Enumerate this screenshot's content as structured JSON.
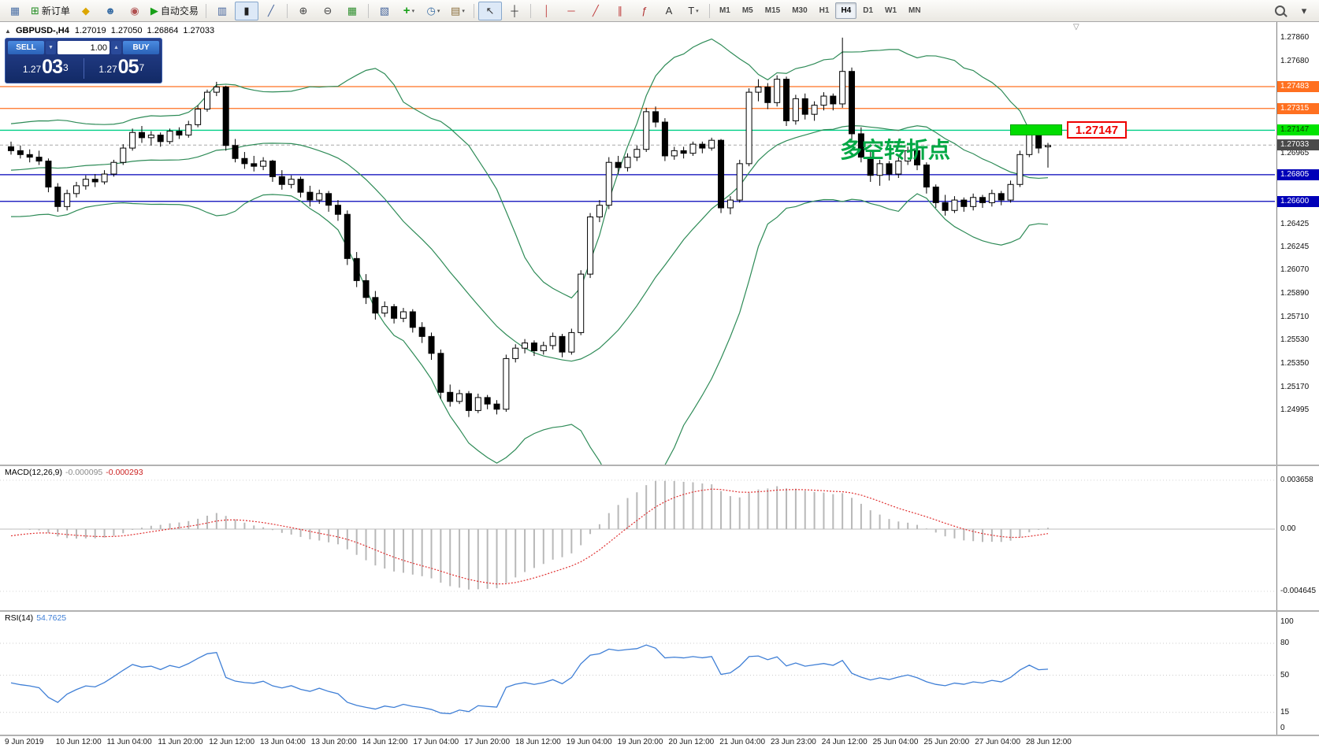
{
  "toolbar": {
    "dd_glyph": "▾",
    "timeframes": [
      "M1",
      "M5",
      "M15",
      "M30",
      "H1",
      "H4",
      "D1",
      "W1",
      "MN"
    ],
    "active_timeframe": "H4",
    "items": [
      {
        "name": "terminal",
        "glyph": "▦",
        "color": "#4a6fa5",
        "interactable": false
      },
      {
        "name": "new-order",
        "glyph": "⊞",
        "color": "#1e8a1e",
        "label": "新订单"
      },
      {
        "name": "metaeditor",
        "glyph": "◆",
        "color": "#dca600"
      },
      {
        "name": "market",
        "glyph": "☻",
        "color": "#3a6ea5"
      },
      {
        "name": "signals",
        "glyph": "◉",
        "color": "#b05050"
      },
      {
        "name": "autotrading",
        "glyph": "▶",
        "color": "#18a018",
        "label": "自动交易"
      },
      {
        "sep": true
      },
      {
        "name": "bar-chart",
        "glyph": "▥",
        "color": "#44639b"
      },
      {
        "name": "candle-chart",
        "glyph": "▮",
        "color": "#222222",
        "active": true
      },
      {
        "name": "line-chart",
        "glyph": "╱",
        "color": "#44639b"
      },
      {
        "sep": true
      },
      {
        "name": "zoom-in",
        "glyph": "⊕",
        "color": "#444444"
      },
      {
        "name": "zoom-out",
        "glyph": "⊖",
        "color": "#444444"
      },
      {
        "name": "tile-windows",
        "glyph": "▦",
        "color": "#2f8f2f"
      },
      {
        "sep": true
      },
      {
        "name": "cascade-windows",
        "glyph": "▧",
        "color": "#44639b"
      },
      {
        "name": "indicators",
        "glyph": "+",
        "color": "#18a018",
        "dd": true
      },
      {
        "name": "periods",
        "glyph": "◷",
        "color": "#3a6ea5",
        "dd": true
      },
      {
        "name": "templates",
        "glyph": "▤",
        "color": "#8a6d3b",
        "dd": true
      },
      {
        "sep": true
      },
      {
        "name": "cursor",
        "glyph": "↖",
        "color": "#333333",
        "active": true
      },
      {
        "name": "crosshair",
        "glyph": "┼",
        "color": "#333333"
      },
      {
        "sep": true
      },
      {
        "name": "vertical-line",
        "glyph": "│",
        "color": "#c04040"
      },
      {
        "name": "horizontal-line",
        "glyph": "─",
        "color": "#c04040"
      },
      {
        "name": "trendline",
        "glyph": "╱",
        "color": "#c04040"
      },
      {
        "name": "channel",
        "glyph": "∥",
        "color": "#c04040"
      },
      {
        "name": "fibonacci",
        "glyph": "ƒ",
        "color": "#b03030"
      },
      {
        "name": "text",
        "glyph": "A",
        "color": "#333333"
      },
      {
        "name": "arrows",
        "glyph": "T",
        "color": "#333333",
        "dd": true
      },
      {
        "sep": true
      }
    ],
    "right_items": [
      {
        "name": "search",
        "mag": true
      },
      {
        "name": "panel-toggle",
        "glyph": "▾",
        "color": "#444444"
      }
    ]
  },
  "chart": {
    "title": {
      "symbol": "GBPUSD-,H4",
      "open": "1.27019",
      "high": "1.27050",
      "low": "1.26864",
      "close": "1.27033"
    },
    "icons": {
      "collapse": "▲",
      "shift": "▽"
    },
    "trade_panel": {
      "sell_label": "SELL",
      "buy_label": "BUY",
      "volume": "1.00",
      "sell_dd": "▼",
      "vol_stepper": "▲",
      "sell_price_main": "1.27",
      "sell_price_big": "03",
      "sell_price_sup": "3",
      "buy_price_main": "1.27",
      "buy_price_big": "05",
      "buy_price_sup": "7"
    },
    "annotation": {
      "text": "多空转折点",
      "color": "#00a844"
    },
    "callout": {
      "text": "1.27147"
    },
    "hlines": [
      {
        "price": 1.27483,
        "color": "#ff7020",
        "label": "1.27483",
        "badge": "#ff7020"
      },
      {
        "price": 1.27315,
        "color": "#ff7020",
        "label": "1.27315",
        "badge": "#ff7020"
      },
      {
        "price": 1.27147,
        "color": "#00cf86",
        "label": "1.27147",
        "badge": "#00e400",
        "badge_text": "#0a3300"
      },
      {
        "price": 1.26805,
        "color": "#0000b8",
        "label": "1.26805",
        "badge": "#0000b8"
      },
      {
        "price": 1.266,
        "color": "#0000b8",
        "label": "1.26600",
        "badge": "#0000b8"
      }
    ],
    "current_price": {
      "value": 1.27033,
      "label": "1.27033",
      "badge": "#4a4a4a"
    },
    "price_ticks": [
      "1.27860",
      "1.27680",
      "1.26965",
      "1.26425",
      "1.26245",
      "1.26070",
      "1.25890",
      "1.25710",
      "1.25530",
      "1.25350",
      "1.25170",
      "1.24995"
    ]
  },
  "chart_data": {
    "type": "candlestick",
    "symbol": "GBPUSD-",
    "timeframe": "H4",
    "visible_price_range": [
      1.2458,
      1.2798
    ],
    "time_labels": [
      "9 Jun 2019",
      "10 Jun 12:00",
      "11 Jun 04:00",
      "11 Jun 20:00",
      "12 Jun 12:00",
      "13 Jun 04:00",
      "13 Jun 20:00",
      "14 Jun 12:00",
      "17 Jun 04:00",
      "17 Jun 20:00",
      "18 Jun 12:00",
      "19 Jun 04:00",
      "19 Jun 20:00",
      "20 Jun 12:00",
      "21 Jun 04:00",
      "23 Jun 23:00",
      "24 Jun 12:00",
      "25 Jun 04:00",
      "25 Jun 20:00",
      "27 Jun 04:00",
      "28 Jun 12:00"
    ],
    "seed_closes": [
      1.2732,
      1.2727,
      1.2721,
      1.2714,
      1.2707,
      1.27,
      1.2694,
      1.2688,
      1.2681,
      1.2675,
      1.2669,
      1.2664,
      1.2659,
      1.2655,
      1.2661,
      1.2667,
      1.2673,
      1.2679,
      1.2685,
      1.2691,
      1.2697,
      1.2703,
      1.2708,
      1.2712,
      1.2709,
      1.2705
    ],
    "candles": [
      [
        1.2702,
        1.2706,
        1.2696,
        1.2699
      ],
      [
        1.2699,
        1.2703,
        1.2693,
        1.2696
      ],
      [
        1.2696,
        1.27,
        1.269,
        1.2694
      ],
      [
        1.2694,
        1.2699,
        1.2688,
        1.2691
      ],
      [
        1.2691,
        1.2693,
        1.2667,
        1.2671
      ],
      [
        1.2671,
        1.2674,
        1.2652,
        1.2656
      ],
      [
        1.2656,
        1.2669,
        1.2653,
        1.2666
      ],
      [
        1.2666,
        1.2675,
        1.2663,
        1.2672
      ],
      [
        1.2672,
        1.268,
        1.2669,
        1.2677
      ],
      [
        1.2677,
        1.2681,
        1.2671,
        1.2675
      ],
      [
        1.2675,
        1.2684,
        1.2673,
        1.2681
      ],
      [
        1.2681,
        1.2692,
        1.2679,
        1.269
      ],
      [
        1.269,
        1.2704,
        1.2688,
        1.2701
      ],
      [
        1.2701,
        1.2716,
        1.2699,
        1.2713
      ],
      [
        1.2713,
        1.2718,
        1.2705,
        1.2709
      ],
      [
        1.2709,
        1.2714,
        1.2703,
        1.2711
      ],
      [
        1.2711,
        1.2713,
        1.2702,
        1.2706
      ],
      [
        1.2706,
        1.2716,
        1.2704,
        1.2714
      ],
      [
        1.2714,
        1.2717,
        1.2708,
        1.2711
      ],
      [
        1.2711,
        1.2722,
        1.2709,
        1.2719
      ],
      [
        1.2719,
        1.2734,
        1.2717,
        1.2731
      ],
      [
        1.2731,
        1.2746,
        1.2729,
        1.2744
      ],
      [
        1.2744,
        1.2752,
        1.2741,
        1.2748
      ],
      [
        1.2748,
        1.2749,
        1.2699,
        1.2703
      ],
      [
        1.2703,
        1.2708,
        1.269,
        1.2693
      ],
      [
        1.2693,
        1.2698,
        1.2685,
        1.2689
      ],
      [
        1.2689,
        1.2695,
        1.2683,
        1.2687
      ],
      [
        1.2687,
        1.2694,
        1.2684,
        1.2691
      ],
      [
        1.2691,
        1.2692,
        1.2675,
        1.2679
      ],
      [
        1.2679,
        1.2684,
        1.2669,
        1.2673
      ],
      [
        1.2673,
        1.268,
        1.267,
        1.2677
      ],
      [
        1.2677,
        1.2679,
        1.2663,
        1.2667
      ],
      [
        1.2667,
        1.2672,
        1.2656,
        1.2661
      ],
      [
        1.2661,
        1.2669,
        1.2658,
        1.2666
      ],
      [
        1.2666,
        1.2668,
        1.2652,
        1.2657
      ],
      [
        1.2657,
        1.2661,
        1.2645,
        1.265
      ],
      [
        1.265,
        1.2653,
        1.2611,
        1.2616
      ],
      [
        1.2616,
        1.2621,
        1.2594,
        1.2599
      ],
      [
        1.2599,
        1.2604,
        1.2581,
        1.2586
      ],
      [
        1.2586,
        1.2591,
        1.2569,
        1.2574
      ],
      [
        1.2574,
        1.2583,
        1.2571,
        1.2579
      ],
      [
        1.2579,
        1.2581,
        1.2566,
        1.257
      ],
      [
        1.257,
        1.2578,
        1.2567,
        1.2575
      ],
      [
        1.2575,
        1.2577,
        1.2559,
        1.2563
      ],
      [
        1.2563,
        1.2567,
        1.2551,
        1.2556
      ],
      [
        1.2556,
        1.2559,
        1.2538,
        1.2543
      ],
      [
        1.2543,
        1.2546,
        1.2508,
        1.2513
      ],
      [
        1.2513,
        1.2519,
        1.2502,
        1.2506
      ],
      [
        1.2506,
        1.2515,
        1.2504,
        1.2512
      ],
      [
        1.2512,
        1.2514,
        1.2494,
        1.2499
      ],
      [
        1.2499,
        1.2512,
        1.2497,
        1.2509
      ],
      [
        1.2509,
        1.2511,
        1.25,
        1.2504
      ],
      [
        1.2504,
        1.2507,
        1.2496,
        1.25
      ],
      [
        1.25,
        1.2542,
        1.2498,
        1.2539
      ],
      [
        1.2539,
        1.255,
        1.2536,
        1.2547
      ],
      [
        1.2547,
        1.2554,
        1.2543,
        1.2551
      ],
      [
        1.2551,
        1.2553,
        1.2541,
        1.2545
      ],
      [
        1.2545,
        1.2552,
        1.2542,
        1.2549
      ],
      [
        1.2549,
        1.2559,
        1.2546,
        1.2556
      ],
      [
        1.2556,
        1.2558,
        1.254,
        1.2544
      ],
      [
        1.2544,
        1.2562,
        1.2542,
        1.2559
      ],
      [
        1.2559,
        1.2607,
        1.2557,
        1.2604
      ],
      [
        1.2604,
        1.2651,
        1.2601,
        1.2648
      ],
      [
        1.2648,
        1.2661,
        1.2644,
        1.2657
      ],
      [
        1.2657,
        1.2694,
        1.2654,
        1.269
      ],
      [
        1.269,
        1.2695,
        1.2681,
        1.2686
      ],
      [
        1.2686,
        1.2697,
        1.2683,
        1.2694
      ],
      [
        1.2694,
        1.2703,
        1.2691,
        1.27
      ],
      [
        1.27,
        1.2732,
        1.2698,
        1.2729
      ],
      [
        1.2729,
        1.2733,
        1.2717,
        1.2721
      ],
      [
        1.2721,
        1.2724,
        1.2691,
        1.2695
      ],
      [
        1.2695,
        1.2702,
        1.2692,
        1.2699
      ],
      [
        1.2699,
        1.2702,
        1.2693,
        1.2697
      ],
      [
        1.2697,
        1.2706,
        1.2695,
        1.2704
      ],
      [
        1.2704,
        1.2706,
        1.2697,
        1.2701
      ],
      [
        1.2701,
        1.2709,
        1.2699,
        1.2707
      ],
      [
        1.2707,
        1.2708,
        1.2651,
        1.2655
      ],
      [
        1.2655,
        1.2664,
        1.265,
        1.2661
      ],
      [
        1.2661,
        1.2692,
        1.2659,
        1.2689
      ],
      [
        1.2689,
        1.2747,
        1.2687,
        1.2744
      ],
      [
        1.2744,
        1.2754,
        1.2737,
        1.2748
      ],
      [
        1.2748,
        1.2751,
        1.2731,
        1.2736
      ],
      [
        1.2736,
        1.2757,
        1.2733,
        1.2754
      ],
      [
        1.2754,
        1.2756,
        1.2718,
        1.2722
      ],
      [
        1.2722,
        1.2742,
        1.2719,
        1.2739
      ],
      [
        1.2739,
        1.2743,
        1.2723,
        1.2727
      ],
      [
        1.2727,
        1.2737,
        1.2722,
        1.2734
      ],
      [
        1.2734,
        1.2744,
        1.273,
        1.2741
      ],
      [
        1.2741,
        1.2743,
        1.273,
        1.2735
      ],
      [
        1.2735,
        1.2786,
        1.2732,
        1.276
      ],
      [
        1.276,
        1.2763,
        1.2707,
        1.2712
      ],
      [
        1.2712,
        1.2717,
        1.269,
        1.2694
      ],
      [
        1.2694,
        1.2699,
        1.2675,
        1.268
      ],
      [
        1.268,
        1.2692,
        1.2672,
        1.2689
      ],
      [
        1.2689,
        1.2691,
        1.2676,
        1.2681
      ],
      [
        1.2681,
        1.2694,
        1.2678,
        1.2691
      ],
      [
        1.2691,
        1.2702,
        1.2688,
        1.2699
      ],
      [
        1.2699,
        1.2701,
        1.2684,
        1.2688
      ],
      [
        1.2688,
        1.269,
        1.2666,
        1.2671
      ],
      [
        1.2671,
        1.2673,
        1.2655,
        1.2659
      ],
      [
        1.2659,
        1.2665,
        1.2649,
        1.2653
      ],
      [
        1.2653,
        1.2664,
        1.2651,
        1.2661
      ],
      [
        1.2661,
        1.2663,
        1.2652,
        1.2656
      ],
      [
        1.2656,
        1.2666,
        1.2653,
        1.2663
      ],
      [
        1.2663,
        1.2665,
        1.2655,
        1.2659
      ],
      [
        1.2659,
        1.2669,
        1.2656,
        1.2666
      ],
      [
        1.2666,
        1.2668,
        1.2657,
        1.2661
      ],
      [
        1.2661,
        1.2676,
        1.2659,
        1.2673
      ],
      [
        1.2673,
        1.2699,
        1.2671,
        1.2696
      ],
      [
        1.2696,
        1.2718,
        1.2694,
        1.2714
      ],
      [
        1.2714,
        1.2716,
        1.2697,
        1.2701
      ],
      [
        1.2702,
        1.2705,
        1.2686,
        1.2703
      ]
    ],
    "indicators": {
      "bollinger": {
        "period": 20,
        "deviation": 2,
        "color": "#2e8b57"
      },
      "macd": {
        "label": "MACD(12,26,9)",
        "value": "-0.000095",
        "signal": "-0.000293",
        "scale_labels": [
          "0.003658",
          "0.00",
          "-0.004645"
        ],
        "histogram_color": "#b8b8b8",
        "signal_color": "#e03030"
      },
      "rsi": {
        "label": "RSI(14)",
        "value": "54.7625",
        "scale_labels": [
          "100",
          "80",
          "50",
          "15",
          "0"
        ],
        "levels": [
          80,
          50,
          15
        ],
        "color": "#3f7fd6"
      }
    },
    "style": {
      "up_fill": "#ffffff",
      "down_fill": "#000000",
      "outline": "#000000",
      "background": "#ffffff"
    }
  }
}
